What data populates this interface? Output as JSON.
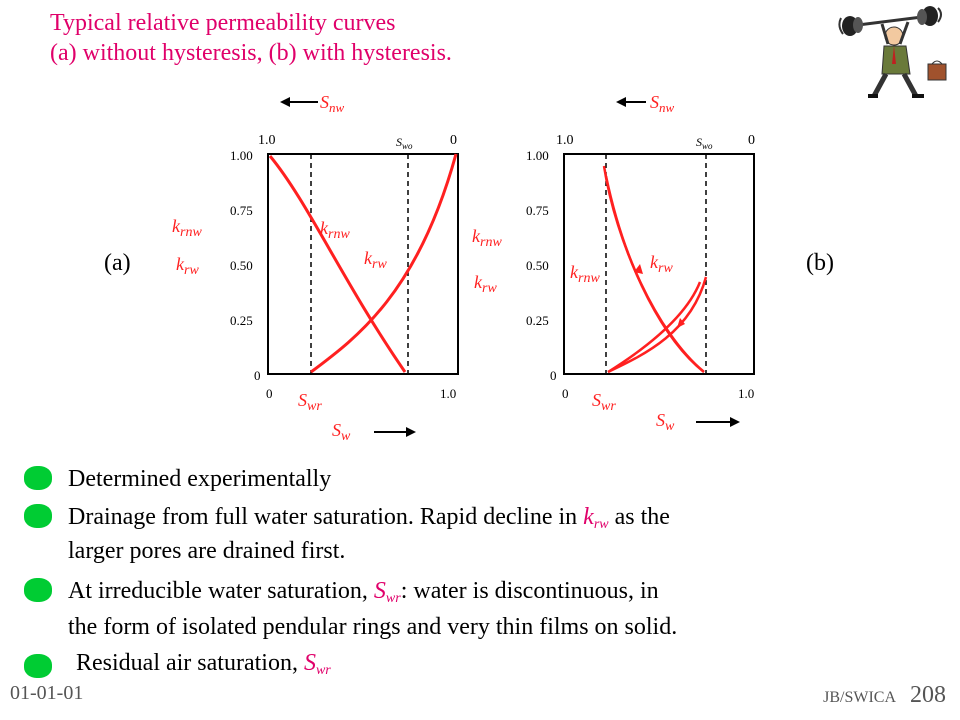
{
  "title": {
    "line1": "Typical relative permeability curves",
    "line2": "(a) without hysteresis,  (b) with hysteresis."
  },
  "panel_labels": {
    "a": "(a)",
    "b": "(b)"
  },
  "figure": {
    "top_axis_label": "S",
    "top_axis_sub": "nw",
    "top_left_tick": "1.0",
    "top_right_tick": "0",
    "swc_marker": "S",
    "swc_marker_sub": "wo",
    "y_ticks": [
      "1.00",
      "0.75",
      "0.50",
      "0.25",
      "0"
    ],
    "x_ticks": [
      "0",
      "1.0"
    ],
    "swr_label": "S",
    "swr_sub": "wr",
    "sw_label": "S",
    "sw_sub": "w",
    "krnw": "k",
    "krnw_sub": "rnw",
    "krw": "k",
    "krw_sub": "rw"
  },
  "bullets": [
    {
      "text": "Determined experimentally"
    },
    {
      "pre": "Drainage from full water saturation. Rapid decline in ",
      "sym": "k",
      "sub": "rw",
      "post": " as the",
      "line2": "larger pores are drained first."
    },
    {
      "pre": "At irreducible water saturation, ",
      "sym": "S",
      "sub": "wr",
      "post": ": water is discontinuous,  in",
      "line2": "the form of isolated pendular rings and very thin films on solid."
    },
    {
      "pre": "Residual air saturation, ",
      "sym": "S",
      "sub": "wr"
    }
  ],
  "footer": {
    "date": "01-01-01",
    "org": "JB/SWICA",
    "page": "208"
  },
  "colors": {
    "title": "#e0006a",
    "curve": "#ff2020",
    "bullet": "#00cc33"
  }
}
